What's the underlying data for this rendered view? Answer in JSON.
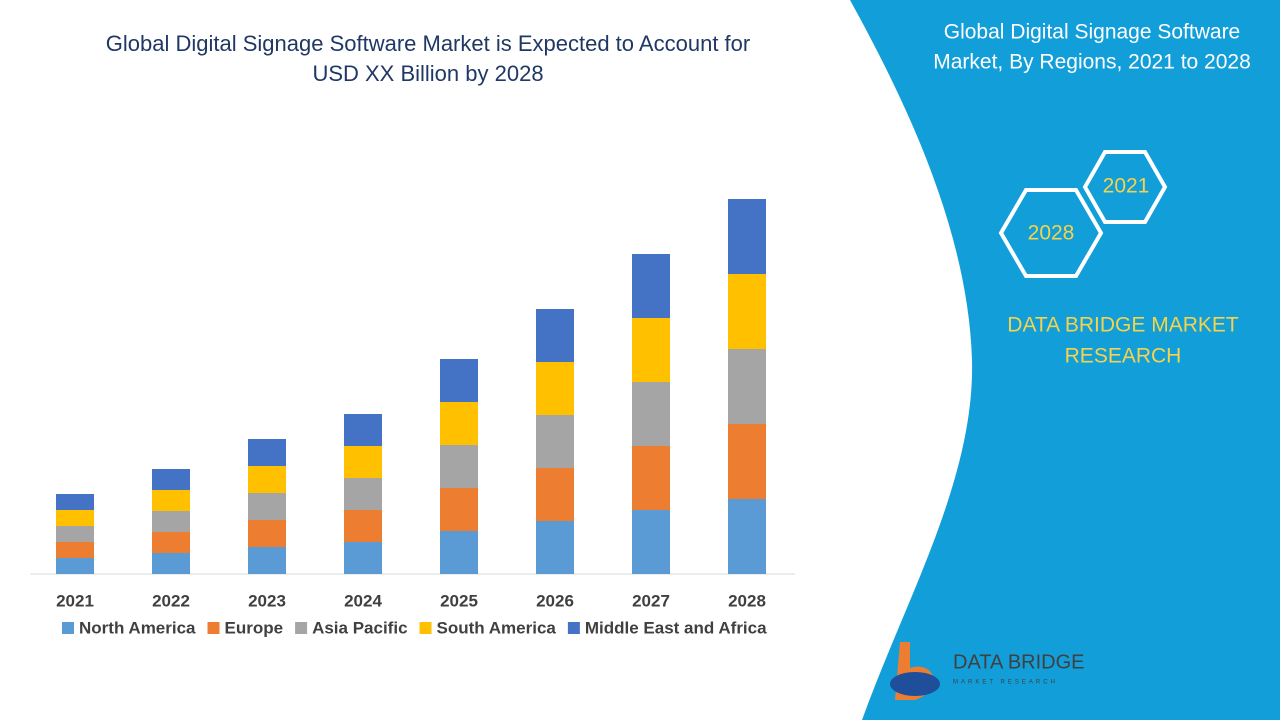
{
  "chart_data": {
    "type": "stacked-bar",
    "title": [
      "Global Digital Signage Software Market is Expected to Account for",
      "USD XX Billion by 2028"
    ],
    "categories": [
      "2021",
      "2022",
      "2023",
      "2024",
      "2025",
      "2026",
      "2027",
      "2028"
    ],
    "series": [
      {
        "name": "North America",
        "color": "#5b9bd5",
        "values": [
          16,
          21,
          27,
          32,
          43,
          53,
          64,
          75
        ]
      },
      {
        "name": "Europe",
        "color": "#ed7d31",
        "values": [
          16,
          21,
          27,
          32,
          43,
          53,
          64,
          75
        ]
      },
      {
        "name": "Asia Pacific",
        "color": "#a5a5a5",
        "values": [
          16,
          21,
          27,
          32,
          43,
          53,
          64,
          75
        ]
      },
      {
        "name": "South America",
        "color": "#ffc000",
        "values": [
          16,
          21,
          27,
          32,
          43,
          53,
          64,
          75
        ]
      },
      {
        "name": "Middle East and Africa",
        "color": "#4472c4",
        "values": [
          16,
          21,
          27,
          32,
          43,
          53,
          64,
          75
        ]
      }
    ],
    "ylim": [
      0,
      400
    ]
  },
  "panel": {
    "title": [
      "Global Digital Signage Software",
      "Market, By Regions, 2021 to 2028"
    ],
    "hexagons": [
      "2021",
      "2028"
    ],
    "brand": [
      "DATA BRIDGE MARKET",
      "RESEARCH"
    ]
  },
  "logo": {
    "name": "DATA BRIDGE",
    "tagline": "MARKET RESEARCH"
  }
}
